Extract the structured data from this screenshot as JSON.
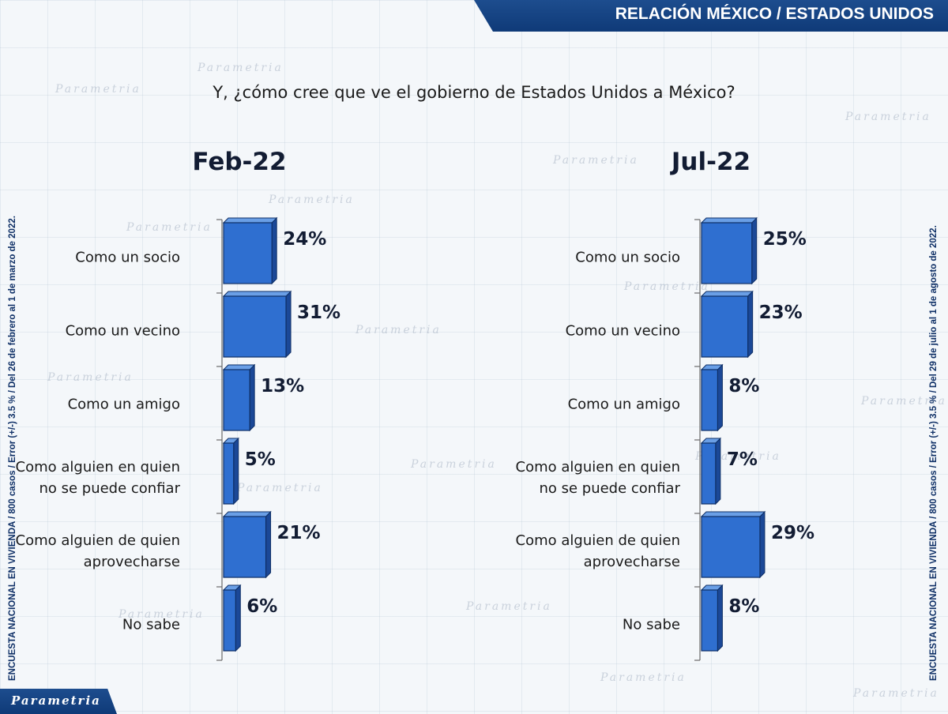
{
  "header": {
    "section_title": "RELACIÓN MÉXICO / ESTADOS UNIDOS"
  },
  "question": "Y, ¿cómo cree que ve el gobierno de Estados Unidos a México?",
  "side_note_left": "ENCUESTA NACIONAL EN VIVIENDA / 800 casos / Error (+/-) 3.5 % / Del 26 de febrero al 1 de marzo de 2022.",
  "side_note_right": "ENCUESTA NACIONAL EN VIVIENDA / 800 casos / Error (+/-) 3.5 % / Del 29 de julio al 1 de agosto de 2022.",
  "logo_text": "Parametria",
  "watermark_text": "Parametria",
  "colors": {
    "bar_front": "#2f6fd0",
    "bar_top": "#6a9fe6",
    "bar_side": "#1b4897",
    "bar_edge": "#0e2f66",
    "header_bar": "#163f80"
  },
  "chart_data": [
    {
      "type": "bar",
      "orientation": "horizontal",
      "title": "Feb-22",
      "categories": [
        [
          "Como un socio"
        ],
        [
          "Como un vecino"
        ],
        [
          "Como un amigo"
        ],
        [
          "Como alguien en quien",
          "no se puede confiar"
        ],
        [
          "Como alguien de quien",
          "aprovecharse"
        ],
        [
          "No sabe"
        ]
      ],
      "values": [
        24,
        31,
        13,
        5,
        21,
        6
      ],
      "value_suffix": "%"
    },
    {
      "type": "bar",
      "orientation": "horizontal",
      "title": "Jul-22",
      "categories": [
        [
          "Como un socio"
        ],
        [
          "Como un vecino"
        ],
        [
          "Como un amigo"
        ],
        [
          "Como alguien en quien",
          "no se puede confiar"
        ],
        [
          "Como alguien de quien",
          "aprovecharse"
        ],
        [
          "No sabe"
        ]
      ],
      "values": [
        25,
        23,
        8,
        7,
        29,
        8
      ],
      "value_suffix": "%"
    }
  ]
}
